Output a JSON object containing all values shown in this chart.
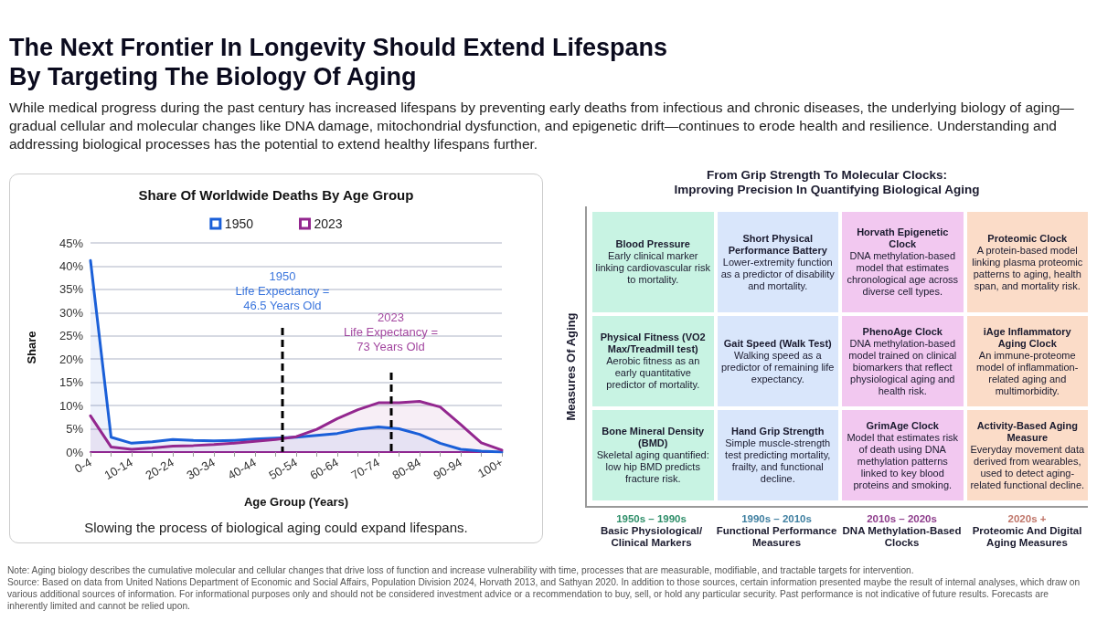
{
  "chart_data": [
    {
      "type": "other",
      "title": "The Next Frontier In Longevity Should Extend Lifespans\nBy Targeting The Biology Of Aging",
      "subtitle": "While medical progress during the past century has increased lifespans by preventing early deaths from infectious and chronic diseases, the underlying biology of aging—gradual cellular and molecular changes like DNA damage, mitochondrial dysfunction, and epigenetic drift—continues to erode health and resilience. Understanding and addressing biological processes has the potential to extend healthy lifespans further."
    },
    {
      "type": "area",
      "title": "Share Of Worldwide Deaths By Age Group",
      "xlabel": "Age Group (Years)",
      "ylabel": "Share",
      "categories": [
        "0-4",
        null,
        "10-14",
        null,
        "20-24",
        null,
        "30-34",
        null,
        "40-44",
        null,
        "50-54",
        null,
        "60-64",
        null,
        "70-74",
        null,
        "80-84",
        null,
        "90-94",
        null,
        "100+"
      ],
      "series": [
        {
          "name": "1950",
          "color": "#1a5fd8",
          "values": [
            41.2,
            3.2,
            1.9,
            2.2,
            2.7,
            2.5,
            2.4,
            2.5,
            2.8,
            3.0,
            3.2,
            3.6,
            4.0,
            4.9,
            5.4,
            5.0,
            3.8,
            1.9,
            0.6,
            0.2,
            0.0
          ]
        },
        {
          "name": "2023",
          "color": "#93278f",
          "values": [
            7.8,
            1.1,
            0.6,
            0.9,
            1.3,
            1.4,
            1.6,
            1.9,
            2.3,
            2.7,
            3.3,
            4.9,
            7.2,
            9.1,
            10.6,
            10.6,
            10.9,
            9.7,
            5.9,
            2.0,
            0.4
          ]
        }
      ],
      "ylim": [
        0,
        45
      ],
      "yticks": [
        {
          "value": 0,
          "label": "0%"
        },
        {
          "value": 5,
          "label": "5%"
        },
        {
          "value": 10,
          "label": "10%"
        },
        {
          "value": 15,
          "label": "15%"
        },
        {
          "value": 20,
          "label": "20%"
        },
        {
          "value": 25,
          "label": "25%"
        },
        {
          "value": 30,
          "label": "30%"
        },
        {
          "value": 35,
          "label": "35%"
        },
        {
          "value": 40,
          "label": "40%"
        },
        {
          "value": 45,
          "label": "45%"
        }
      ],
      "annotations": [
        "1950\nLife Expectancy =\n46.5 Years Old",
        "2023\nLife Expectancy =\n73 Years Old",
        "Slowing the process of biological aging could expand lifespans."
      ],
      "grid": "y",
      "legend": "top",
      "marker": "none",
      "line_style": "solid"
    },
    {
      "type": "other",
      "title": "From Grip Strength To Molecular Clocks:\nImproving Precision In Quantifying Biological Aging",
      "ylabel": "Measures Of Aging",
      "categories": [
        "1950s – 1990s\nBasic Physiological/ Clinical Markers",
        "1990s – 2010s\nFunctional Performance Measures",
        "2010s – 2020s\nDNA Methylation-Based Clocks",
        "2020s +\nProteomic And Digital Aging Measures"
      ],
      "colors": [
        "#c8f3e3",
        "#d9e6fb",
        "#f2c8f0",
        "#fbdcc8"
      ],
      "annotations": [
        "Blood Pressure\nEarly clinical marker linking cardiovascular risk to mortality.",
        "Short Physical Performance Battery\nLower-extremity function as a predictor of disability and mortality.",
        "Horvath Epigenetic Clock\nDNA methylation-based model that estimates chronological age across diverse cell types.",
        "Proteomic Clock\nA protein-based model linking plasma proteomic patterns to aging, health span, and mortality risk.",
        "Physical Fitness (VO2 Max/Treadmill test)\nAerobic fitness as an early quantitative predictor of mortality.",
        "Gait Speed (Walk Test)\nWalking speed as a predictor of remaining life expectancy.",
        "PhenoAge Clock\nDNA methylation-based model trained on clinical biomarkers that reflect physiological aging and health risk.",
        "iAge Inflammatory Aging Clock\nAn immune-proteome model of inflammation-related aging and multimorbidity.",
        "Bone Mineral Density (BMD)\nSkeletal aging quantified: low hip BMD predicts fracture risk.",
        "Hand Grip Strength\nSimple muscle-strength test predicting mortality, frailty, and functional decline.",
        "GrimAge Clock\nModel that estimates risk of death using DNA methylation patterns linked to key blood proteins and smoking.",
        "Activity-Based Aging Measure\nEveryday movement data derived from wearables, used to detect aging-related functional decline."
      ]
    },
    {
      "type": "other",
      "annotations": [
        "Note: Aging biology describes the cumulative molecular and cellular changes that drive loss of function and increase vulnerability with time, processes that are measurable, modifiable, and tractable targets for intervention.",
        "Source: Based on data from United Nations Department of Economic and Social Affairs, Population Division 2024, Horvath 2013, and Sathyan 2020. In addition to those sources, certain information presented maybe the result of internal analyses, which draw on various additional sources of information. For informational purposes only and should not be considered investment advice or a recommendation to buy, sell, or hold any particular security. Past performance is not indicative of future results. Forecasts are inherently limited and cannot be relied upon."
      ]
    }
  ]
}
